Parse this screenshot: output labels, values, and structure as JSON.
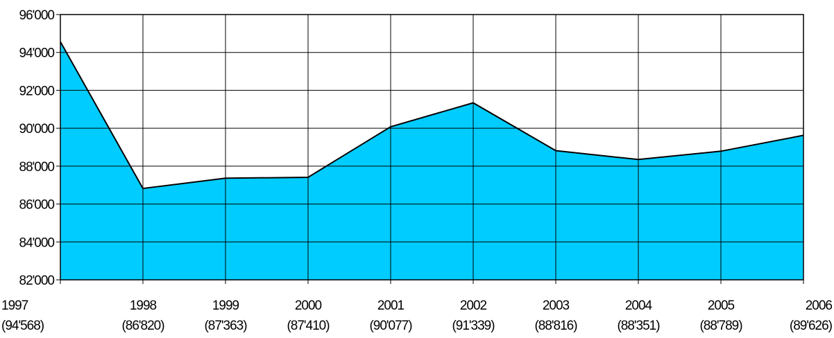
{
  "chart_data": {
    "type": "area",
    "title": "",
    "xlabel": "",
    "ylabel": "",
    "x": [
      "1997",
      "1998",
      "1999",
      "2000",
      "2001",
      "2002",
      "2003",
      "2004",
      "2005",
      "2006"
    ],
    "x_sublabels": [
      "(94'568)",
      "(86'820)",
      "(87'363)",
      "(87'410)",
      "(90'077)",
      "(91'339)",
      "(88'816)",
      "(88'351)",
      "(88'789)",
      "(89'626)"
    ],
    "series": [
      {
        "values": [
          94568,
          86820,
          87363,
          87410,
          90077,
          91339,
          88816,
          88351,
          88789,
          89626
        ]
      }
    ],
    "ylim": [
      82000,
      96000
    ],
    "yticks": [
      82000,
      84000,
      86000,
      88000,
      90000,
      92000,
      94000,
      96000
    ],
    "ytick_labels": [
      "82'000",
      "84'000",
      "86'000",
      "88'000",
      "90'000",
      "92'000",
      "94'000",
      "96'000"
    ],
    "grid": true,
    "legend": "none",
    "colors": {
      "fill": "#00CCFF",
      "line": "#000000",
      "grid": "#000000"
    }
  }
}
